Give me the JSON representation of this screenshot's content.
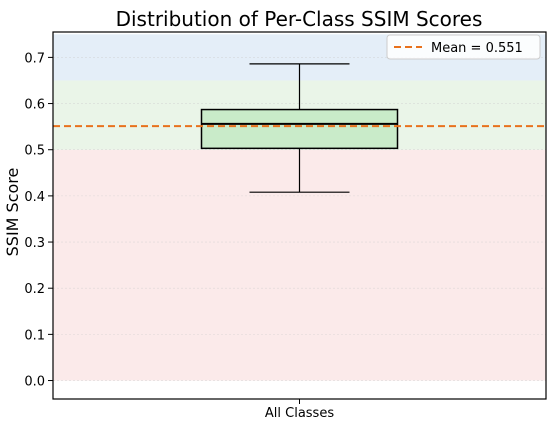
{
  "chart_data": {
    "type": "box",
    "title": "Distribution of Per-Class SSIM Scores",
    "xlabel": "",
    "ylabel": "SSIM Score",
    "ylim": [
      -0.04,
      0.755
    ],
    "yticks": [
      0.0,
      0.1,
      0.2,
      0.3,
      0.4,
      0.5,
      0.6,
      0.7
    ],
    "ytick_labels": [
      "0.0",
      "0.1",
      "0.2",
      "0.3",
      "0.4",
      "0.5",
      "0.6",
      "0.7"
    ],
    "grid": true,
    "legend_position": "top-right",
    "categories": [
      "All Classes"
    ],
    "box": {
      "whisker_low": 0.408,
      "q1": 0.503,
      "median": 0.556,
      "q3": 0.587,
      "whisker_high": 0.686
    },
    "mean": {
      "value": 0.551,
      "label": "Mean = 0.551"
    },
    "bands": [
      {
        "from": 0.0,
        "to": 0.5,
        "color": "#fbeaea"
      },
      {
        "from": 0.5,
        "to": 0.65,
        "color": "#eaf5e8"
      },
      {
        "from": 0.65,
        "to": 0.75,
        "color": "#e4eef8"
      }
    ],
    "colors": {
      "box_fill": "#c9ebc9",
      "mean_line": "#e8711c",
      "grid": "#d0d0d0"
    }
  }
}
